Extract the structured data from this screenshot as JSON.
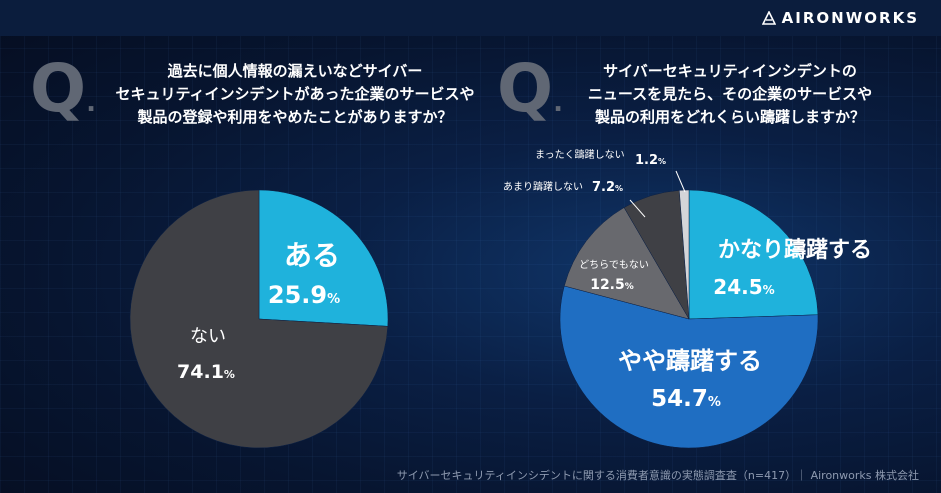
{
  "brand": {
    "name": "AIRONWORKS"
  },
  "left": {
    "q_mark": "Q",
    "q_dot": ".",
    "question_lines": [
      "過去に個人情報の漏えいなどサイバー",
      "セキュリティインシデントがあった企業のサービスや",
      "製品の登録や利用をやめたことがありますか？"
    ]
  },
  "right": {
    "q_mark": "Q",
    "q_dot": ".",
    "question_lines": [
      "サイバーセキュリティインシデントの",
      "ニュースを見たら、その企業のサービスや",
      "製品の利用をどれくらい躊躇しますか？"
    ]
  },
  "footer": "サイバーセキュリティインシデントに関する消費者意識の実態調査査（n=417）｜ Aironworks 株式会社",
  "colors": {
    "cyan": "#1fb2dc",
    "blue": "#1f6ec2",
    "dark_gray": "#3f4045",
    "mid_gray": "#68696e",
    "light_gray": "#a7a8ab",
    "lightest_gray": "#d4d5d8"
  },
  "chart_data": [
    {
      "type": "pie",
      "slices": [
        {
          "label": "ある",
          "value": 25.9,
          "pct_text": "25.9",
          "unit": "%",
          "color": "#1fb2dc"
        },
        {
          "label": "ない",
          "value": 74.1,
          "pct_text": "74.1",
          "unit": "%",
          "color": "#3f4045"
        }
      ]
    },
    {
      "type": "pie",
      "slices": [
        {
          "label": "かなり躊躇する",
          "value": 24.5,
          "pct_text": "24.5",
          "unit": "%",
          "color": "#1fb2dc"
        },
        {
          "label": "やや躊躇する",
          "value": 54.7,
          "pct_text": "54.7",
          "unit": "%",
          "color": "#1f6ec2"
        },
        {
          "label": "どちらでもない",
          "value": 12.5,
          "pct_text": "12.5",
          "unit": "%",
          "color": "#68696e"
        },
        {
          "label": "あまり躊躇しない",
          "value": 7.2,
          "pct_text": "7.2",
          "unit": "%",
          "color": "#3f4045"
        },
        {
          "label": "まったく躊躇しない",
          "value": 1.2,
          "pct_text": "1.2",
          "unit": "%",
          "color": "#d4d5d8"
        }
      ]
    }
  ]
}
